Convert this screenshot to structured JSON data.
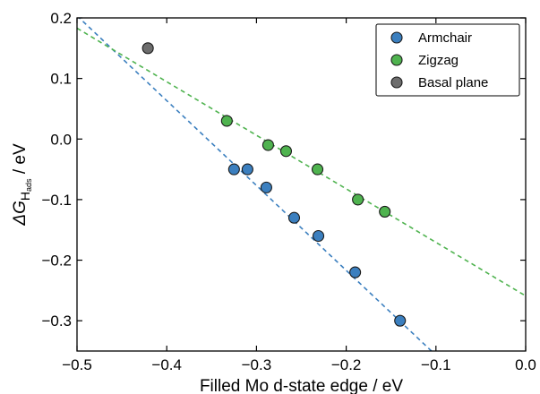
{
  "chart_data": {
    "type": "scatter",
    "xlabel": "Filled Mo d-state edge / eV",
    "ylabel_main": "ΔG",
    "ylabel_sub": "H",
    "ylabel_subsub": "ads",
    "ylabel_unit": " / eV",
    "xlim": [
      -0.5,
      0.0
    ],
    "ylim": [
      -0.35,
      0.2
    ],
    "xticks": [
      -0.5,
      -0.4,
      -0.3,
      -0.2,
      -0.1,
      0.0
    ],
    "xtick_labels": [
      "−0.5",
      "−0.4",
      "−0.3",
      "−0.2",
      "−0.1",
      "0.0"
    ],
    "yticks": [
      -0.3,
      -0.2,
      -0.1,
      0.0,
      0.1,
      0.2
    ],
    "ytick_labels": [
      "−0.3",
      "−0.2",
      "−0.1",
      "0.0",
      "0.1",
      "0.2"
    ],
    "grid": false,
    "legend_position": "top-right",
    "series": [
      {
        "name": "Armchair",
        "color": "#3b7fbf",
        "points": [
          [
            -0.325,
            -0.05
          ],
          [
            -0.31,
            -0.05
          ],
          [
            -0.289,
            -0.08
          ],
          [
            -0.258,
            -0.13
          ],
          [
            -0.231,
            -0.16
          ],
          [
            -0.19,
            -0.22
          ],
          [
            -0.14,
            -0.3
          ]
        ],
        "fit_line": {
          "color": "#3b7fbf",
          "x": [
            -0.5,
            -0.1
          ],
          "y": [
            0.2035,
            -0.357
          ]
        }
      },
      {
        "name": "Zigzag",
        "color": "#4fb34f",
        "points": [
          [
            -0.333,
            0.03
          ],
          [
            -0.287,
            -0.01
          ],
          [
            -0.267,
            -0.02
          ],
          [
            -0.232,
            -0.05
          ],
          [
            -0.187,
            -0.1
          ],
          [
            -0.157,
            -0.12
          ]
        ],
        "fit_line": {
          "color": "#4fb34f",
          "x": [
            -0.5,
            0.0
          ],
          "y": [
            0.183,
            -0.259
          ]
        }
      },
      {
        "name": "Basal plane",
        "color": "#6d6d6d",
        "points": [
          [
            -0.421,
            0.15
          ]
        ]
      }
    ]
  }
}
